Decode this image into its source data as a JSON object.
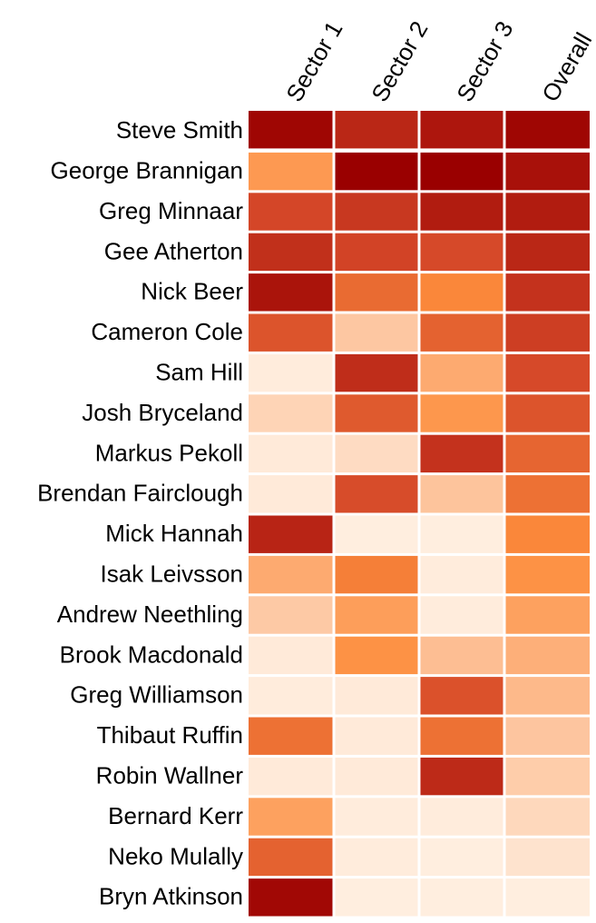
{
  "chart_data": {
    "type": "heatmap",
    "columns": [
      "Sector 1",
      "Sector 2",
      "Sector 3",
      "Overall"
    ],
    "rows": [
      "Steve Smith",
      "George Brannigan",
      "Greg Minnaar",
      "Gee Atherton",
      "Nick Beer",
      "Cameron Cole",
      "Sam Hill",
      "Josh Bryceland",
      "Markus Pekoll",
      "Brendan Fairclough",
      "Mick Hannah",
      "Isak Leivsson",
      "Andrew Neethling",
      "Brook Macdonald",
      "Greg Williamson",
      "Thibaut Ruffin",
      "Robin Wallner",
      "Bernard Kerr",
      "Neko Mulally",
      "Bryn Atkinson"
    ],
    "values": [
      [
        0.98,
        0.86,
        0.92,
        0.98
      ],
      [
        0.45,
        1.0,
        1.0,
        0.94
      ],
      [
        0.75,
        0.8,
        0.9,
        0.9
      ],
      [
        0.83,
        0.76,
        0.74,
        0.86
      ],
      [
        0.93,
        0.62,
        0.52,
        0.82
      ],
      [
        0.7,
        0.25,
        0.65,
        0.78
      ],
      [
        0.05,
        0.84,
        0.38,
        0.74
      ],
      [
        0.18,
        0.68,
        0.46,
        0.7
      ],
      [
        0.06,
        0.14,
        0.82,
        0.64
      ],
      [
        0.06,
        0.73,
        0.27,
        0.6
      ],
      [
        0.87,
        0.04,
        0.04,
        0.52
      ],
      [
        0.38,
        0.55,
        0.05,
        0.48
      ],
      [
        0.24,
        0.43,
        0.05,
        0.42
      ],
      [
        0.06,
        0.48,
        0.3,
        0.36
      ],
      [
        0.05,
        0.06,
        0.71,
        0.32
      ],
      [
        0.6,
        0.06,
        0.6,
        0.26
      ],
      [
        0.06,
        0.06,
        0.85,
        0.22
      ],
      [
        0.42,
        0.05,
        0.05,
        0.16
      ],
      [
        0.65,
        0.05,
        0.04,
        0.1
      ],
      [
        0.97,
        0.04,
        0.04,
        0.04
      ]
    ],
    "color_scale": {
      "low": "#fff5eb",
      "mid_low": "#fdbe93",
      "mid": "#fd8d3c",
      "mid_high": "#d44628",
      "high": "#9a0000"
    }
  }
}
